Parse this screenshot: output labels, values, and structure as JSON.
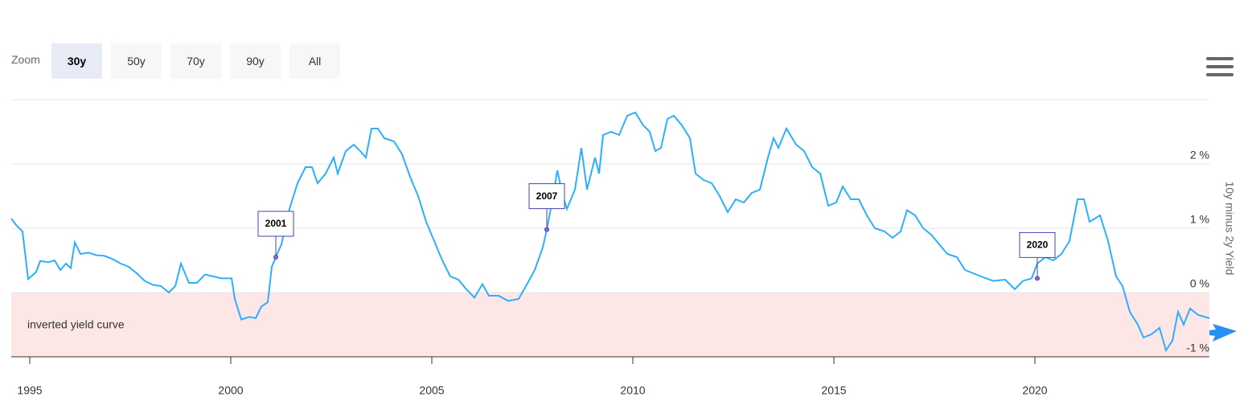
{
  "zoom": {
    "label": "Zoom",
    "buttons": [
      "30y",
      "50y",
      "70y",
      "90y",
      "All"
    ],
    "selected": 0
  },
  "chart_data": {
    "type": "line",
    "y_axis_title": "10y minus 2y Yield",
    "color": "#2caffe",
    "x": [
      1994.54,
      1994.66,
      1994.82,
      1994.96,
      1995.16,
      1995.26,
      1995.46,
      1995.62,
      1995.76,
      1995.9,
      1996.02,
      1996.12,
      1996.26,
      1996.46,
      1996.66,
      1996.86,
      1997.06,
      1997.26,
      1997.46,
      1997.66,
      1997.86,
      1998.06,
      1998.26,
      1998.46,
      1998.62,
      1998.76,
      1998.96,
      1999.16,
      1999.36,
      1999.56,
      1999.76,
      2000.02,
      2000.1,
      2000.26,
      2000.46,
      2000.62,
      2000.76,
      2000.92,
      2001.02,
      2001.12,
      2001.26,
      2001.46,
      2001.66,
      2001.86,
      2002.02,
      2002.16,
      2002.36,
      2002.56,
      2002.66,
      2002.86,
      2003.06,
      2003.22,
      2003.36,
      2003.5,
      2003.66,
      2003.82,
      2004.06,
      2004.26,
      2004.46,
      2004.66,
      2004.86,
      2005.06,
      2005.26,
      2005.46,
      2005.66,
      2005.86,
      2006.06,
      2006.26,
      2006.42,
      2006.66,
      2006.9,
      2007.16,
      2007.36,
      2007.56,
      2007.76,
      2007.86,
      2008.02,
      2008.12,
      2008.26,
      2008.36,
      2008.56,
      2008.72,
      2008.86,
      2009.06,
      2009.16,
      2009.26,
      2009.46,
      2009.66,
      2009.86,
      2010.06,
      2010.26,
      2010.42,
      2010.56,
      2010.7,
      2010.86,
      2011.02,
      2011.22,
      2011.42,
      2011.56,
      2011.76,
      2011.96,
      2012.16,
      2012.36,
      2012.56,
      2012.76,
      2012.96,
      2013.16,
      2013.36,
      2013.5,
      2013.62,
      2013.82,
      2014.06,
      2014.26,
      2014.46,
      2014.66,
      2014.86,
      2015.06,
      2015.22,
      2015.42,
      2015.62,
      2015.82,
      2016.02,
      2016.26,
      2016.46,
      2016.66,
      2016.82,
      2017.02,
      2017.22,
      2017.42,
      2017.62,
      2017.82,
      2018.06,
      2018.26,
      2018.46,
      2018.66,
      2018.96,
      2019.26,
      2019.5,
      2019.7,
      2019.92,
      2020.06,
      2020.26,
      2020.46,
      2020.66,
      2020.86,
      2021.06,
      2021.22,
      2021.36,
      2021.62,
      2021.82,
      2022.02,
      2022.18,
      2022.36,
      2022.56,
      2022.7,
      2022.9,
      2023.1,
      2023.26,
      2023.42,
      2023.56,
      2023.7,
      2023.86,
      2024.06,
      2024.34
    ],
    "values": [
      1.15,
      1.05,
      0.95,
      0.21,
      0.32,
      0.49,
      0.47,
      0.5,
      0.35,
      0.45,
      0.38,
      0.78,
      0.6,
      0.62,
      0.58,
      0.57,
      0.52,
      0.45,
      0.4,
      0.3,
      0.18,
      0.12,
      0.1,
      0.0,
      0.1,
      0.45,
      0.15,
      0.15,
      0.28,
      0.25,
      0.22,
      0.22,
      -0.1,
      -0.42,
      -0.38,
      -0.4,
      -0.22,
      -0.15,
      0.4,
      0.55,
      0.75,
      1.3,
      1.7,
      1.95,
      1.95,
      1.7,
      1.85,
      2.1,
      1.85,
      2.2,
      2.3,
      2.2,
      2.1,
      2.55,
      2.55,
      2.4,
      2.35,
      2.15,
      1.8,
      1.5,
      1.1,
      0.8,
      0.5,
      0.25,
      0.2,
      0.05,
      -0.08,
      0.13,
      -0.05,
      -0.05,
      -0.13,
      -0.1,
      0.12,
      0.35,
      0.7,
      0.98,
      1.5,
      1.9,
      1.5,
      1.3,
      1.6,
      2.25,
      1.6,
      2.1,
      1.85,
      2.45,
      2.5,
      2.45,
      2.75,
      2.8,
      2.6,
      2.5,
      2.2,
      2.25,
      2.7,
      2.75,
      2.6,
      2.4,
      1.85,
      1.75,
      1.7,
      1.5,
      1.25,
      1.45,
      1.4,
      1.55,
      1.6,
      2.1,
      2.4,
      2.25,
      2.55,
      2.3,
      2.2,
      1.95,
      1.85,
      1.35,
      1.4,
      1.65,
      1.45,
      1.45,
      1.2,
      1.0,
      0.95,
      0.85,
      0.95,
      1.28,
      1.2,
      1.0,
      0.9,
      0.75,
      0.6,
      0.55,
      0.35,
      0.3,
      0.25,
      0.18,
      0.2,
      0.05,
      0.18,
      0.22,
      0.45,
      0.55,
      0.5,
      0.6,
      0.8,
      1.45,
      1.45,
      1.1,
      1.2,
      0.8,
      0.25,
      0.1,
      -0.3,
      -0.5,
      -0.7,
      -0.65,
      -0.55,
      -0.9,
      -0.75,
      -0.3,
      -0.5,
      -0.25,
      -0.35,
      -0.4
    ],
    "xlim": [
      1994.54,
      2024.34
    ],
    "xticks": [
      1995,
      2000,
      2005,
      2010,
      2015,
      2020
    ],
    "ylim": [
      -1,
      3
    ],
    "yticks": [
      {
        "value": -1,
        "label": "-1 %"
      },
      {
        "value": 0,
        "label": "0 %"
      },
      {
        "value": 1,
        "label": "1 %"
      },
      {
        "value": 2,
        "label": "2 %"
      }
    ],
    "grid": true,
    "plot_band": {
      "label": "inverted yield curve",
      "from": -1,
      "to": 0,
      "color": "#fde6e6"
    },
    "annotations": [
      {
        "label": "2001",
        "x": 2001.12,
        "y": 0.55
      },
      {
        "label": "2007",
        "x": 2007.86,
        "y": 0.98
      },
      {
        "label": "2020",
        "x": 2020.06,
        "y": 0.22
      }
    ]
  }
}
